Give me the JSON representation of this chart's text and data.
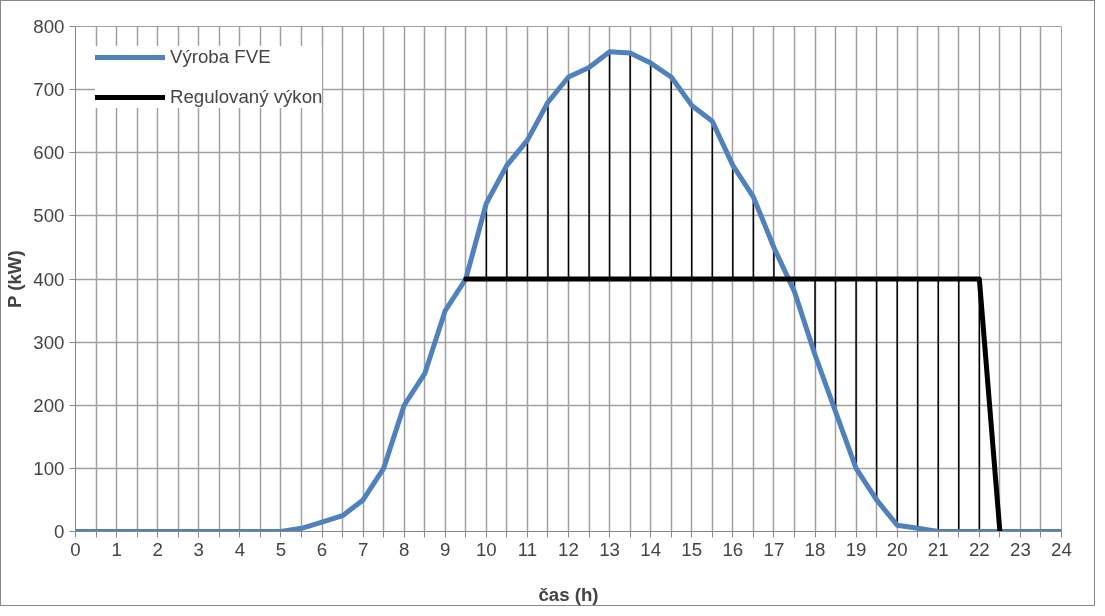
{
  "chart_data": {
    "type": "line",
    "xlabel": "čas (h)",
    "ylabel": "P (kW)",
    "series": [
      {
        "name": "Výroba FVE",
        "color": "#4f81bd",
        "x": [
          0,
          0.5,
          1,
          1.5,
          2,
          2.5,
          3,
          3.5,
          4,
          4.5,
          5,
          5.5,
          6,
          6.5,
          7,
          7.5,
          8,
          8.5,
          9,
          9.5,
          10,
          10.5,
          11,
          11.5,
          12,
          12.5,
          13,
          13.5,
          14,
          14.5,
          15,
          15.5,
          16,
          16.5,
          17,
          17.5,
          18,
          18.5,
          19,
          19.5,
          20,
          20.5,
          21,
          21.5,
          22,
          22.5,
          23,
          23.5,
          24
        ],
        "values": [
          0,
          0,
          0,
          0,
          0,
          0,
          0,
          0,
          0,
          0,
          0,
          5,
          15,
          25,
          50,
          100,
          200,
          250,
          350,
          400,
          520,
          580,
          620,
          680,
          720,
          735,
          760,
          758,
          742,
          720,
          675,
          650,
          580,
          530,
          450,
          380,
          280,
          190,
          100,
          50,
          10,
          5,
          0,
          0,
          0,
          0,
          0,
          0,
          0
        ],
        "errors": [
          null,
          null,
          null,
          null,
          null,
          null,
          null,
          null,
          null,
          null,
          null,
          null,
          null,
          null,
          null,
          null,
          null,
          null,
          null,
          null,
          [
            400,
            520
          ],
          [
            400,
            580
          ],
          [
            400,
            620
          ],
          [
            400,
            680
          ],
          [
            400,
            720
          ],
          [
            400,
            735
          ],
          [
            400,
            760
          ],
          [
            400,
            758
          ],
          [
            400,
            742
          ],
          [
            400,
            720
          ],
          [
            400,
            675
          ],
          [
            400,
            650
          ],
          [
            400,
            580
          ],
          [
            400,
            530
          ],
          [
            400,
            450
          ],
          [
            380,
            400
          ],
          [
            280,
            400
          ],
          [
            190,
            400
          ],
          [
            100,
            400
          ],
          [
            50,
            400
          ],
          [
            10,
            400
          ],
          [
            5,
            400
          ],
          [
            0,
            400
          ],
          [
            0,
            400
          ],
          [
            0,
            400
          ],
          null,
          null,
          null,
          null
        ]
      },
      {
        "name": "Regulovaný výkon",
        "color": "#000000",
        "x": [
          9.5,
          22,
          22.5
        ],
        "values": [
          400,
          400,
          0
        ]
      }
    ],
    "xlim": [
      0,
      24
    ],
    "ylim": [
      0,
      800
    ],
    "xticks": [
      0,
      {
        "value": 0.5,
        "label": null
      },
      1,
      {
        "value": 1.5,
        "label": null
      },
      2,
      {
        "value": 2.5,
        "label": null
      },
      3,
      {
        "value": 3.5,
        "label": null
      },
      4,
      {
        "value": 4.5,
        "label": null
      },
      5,
      {
        "value": 5.5,
        "label": null
      },
      6,
      {
        "value": 6.5,
        "label": null
      },
      7,
      {
        "value": 7.5,
        "label": null
      },
      8,
      {
        "value": 8.5,
        "label": null
      },
      9,
      {
        "value": 9.5,
        "label": null
      },
      10,
      {
        "value": 10.5,
        "label": null
      },
      11,
      {
        "value": 11.5,
        "label": null
      },
      12,
      {
        "value": 12.5,
        "label": null
      },
      13,
      {
        "value": 13.5,
        "label": null
      },
      14,
      {
        "value": 14.5,
        "label": null
      },
      15,
      {
        "value": 15.5,
        "label": null
      },
      16,
      {
        "value": 16.5,
        "label": null
      },
      17,
      {
        "value": 17.5,
        "label": null
      },
      18,
      {
        "value": 18.5,
        "label": null
      },
      19,
      {
        "value": 19.5,
        "label": null
      },
      20,
      {
        "value": 20.5,
        "label": null
      },
      21,
      {
        "value": 21.5,
        "label": null
      },
      22,
      {
        "value": 22.5,
        "label": null
      },
      23,
      {
        "value": 23.5,
        "label": null
      },
      24
    ],
    "yticks": [
      0,
      100,
      200,
      300,
      400,
      500,
      600,
      700,
      800
    ],
    "grid": true,
    "legend": "top left",
    "line_style": "solid",
    "marker": "none"
  }
}
